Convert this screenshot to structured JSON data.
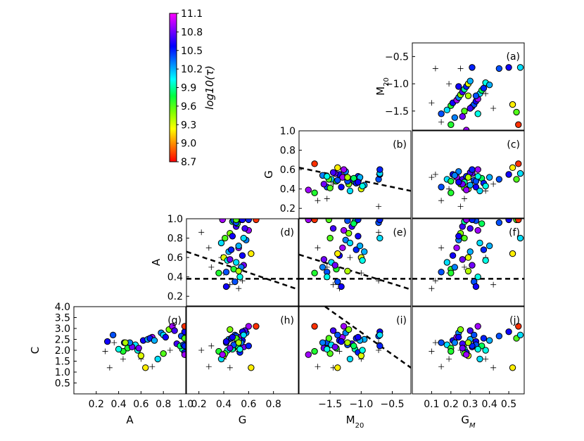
{
  "chart_data": {
    "type": "scatter",
    "layout": "lower-triangular scatter matrix with colorbar top-left",
    "colorbar": {
      "label": "log10(τ)",
      "ticks": [
        "11.1",
        "10.8",
        "10.5",
        "10.2",
        "9.9",
        "9.6",
        "9.3",
        "9.0",
        "8.7"
      ],
      "range": [
        8.7,
        11.1
      ],
      "colors": [
        "#ff0000",
        "#ff8000",
        "#ffff00",
        "#80ff00",
        "#00ff40",
        "#00ffff",
        "#0080ff",
        "#0000ff",
        "#8000ff",
        "#ff00ff"
      ]
    },
    "x_variables": [
      {
        "key": "A",
        "label": "A",
        "range": [
          0,
          1
        ],
        "ticks": [
          "0.2",
          "0.4",
          "0.6",
          "0.8",
          "1.0"
        ]
      },
      {
        "key": "G",
        "label": "G",
        "range": [
          0.1,
          1.0
        ],
        "ticks": [
          "0.2",
          "0.4",
          "0.6",
          "0.8"
        ]
      },
      {
        "key": "M20",
        "label": "M20",
        "range": [
          -2.0,
          -0.2
        ],
        "ticks": [
          "−1.5",
          "−1.0",
          "−0.5"
        ]
      },
      {
        "key": "GM",
        "label": "GM",
        "range": [
          0.0,
          0.58
        ],
        "ticks": [
          "0.1",
          "0.2",
          "0.3",
          "0.4",
          "0.5"
        ]
      }
    ],
    "y_variables": [
      {
        "key": "M20",
        "label": "M20",
        "range": [
          -1.85,
          -0.25
        ],
        "ticks": [
          "−0.5",
          "−1.0",
          "−1.5"
        ]
      },
      {
        "key": "G",
        "label": "G",
        "range": [
          0.1,
          1.0
        ],
        "ticks": [
          "1.0",
          "0.8",
          "0.6",
          "0.4",
          "0.2"
        ]
      },
      {
        "key": "A",
        "label": "A",
        "range": [
          0.1,
          1.0
        ],
        "ticks": [
          "1.0",
          "0.8",
          "0.6",
          "0.4",
          "0.2"
        ]
      },
      {
        "key": "C",
        "label": "C",
        "range": [
          0.0,
          4.0
        ],
        "ticks": [
          "4.0",
          "3.5",
          "3.0",
          "2.5",
          "2.0",
          "1.5",
          "1.0",
          "0.5"
        ]
      }
    ],
    "panels": [
      {
        "id": "a",
        "label": "(a)",
        "x": "GM",
        "y": "M20",
        "row": 0,
        "col": 3,
        "lines": []
      },
      {
        "id": "b",
        "label": "(b)",
        "x": "M20",
        "y": "G",
        "row": 1,
        "col": 2,
        "lines": [
          {
            "x": [
              -2.0,
              -0.2
            ],
            "y": [
              0.62,
              0.38
            ]
          }
        ]
      },
      {
        "id": "c",
        "label": "(c)",
        "x": "GM",
        "y": "G",
        "row": 1,
        "col": 3,
        "lines": []
      },
      {
        "id": "d",
        "label": "(d)",
        "x": "G",
        "y": "A",
        "row": 2,
        "col": 1,
        "lines": [
          {
            "x": [
              0.1,
              1.0
            ],
            "y": [
              0.38,
              0.38
            ]
          },
          {
            "x": [
              0.1,
              1.0
            ],
            "y": [
              0.66,
              0.27
            ]
          }
        ]
      },
      {
        "id": "e",
        "label": "(e)",
        "x": "M20",
        "y": "A",
        "row": 2,
        "col": 2,
        "lines": [
          {
            "x": [
              -2.0,
              -0.2
            ],
            "y": [
              0.38,
              0.38
            ]
          },
          {
            "x": [
              -2.0,
              -0.2
            ],
            "y": [
              0.63,
              0.27
            ]
          }
        ]
      },
      {
        "id": "f",
        "label": "(f)",
        "x": "GM",
        "y": "A",
        "row": 2,
        "col": 3,
        "lines": [
          {
            "x": [
              0.0,
              0.58
            ],
            "y": [
              0.38,
              0.38
            ]
          }
        ]
      },
      {
        "id": "g",
        "label": "(g)",
        "x": "A",
        "y": "C",
        "row": 3,
        "col": 0,
        "lines": []
      },
      {
        "id": "h",
        "label": "(h)",
        "x": "G",
        "y": "C",
        "row": 3,
        "col": 1,
        "lines": []
      },
      {
        "id": "i",
        "label": "(i)",
        "x": "M20",
        "y": "C",
        "row": 3,
        "col": 2,
        "lines": [
          {
            "x": [
              -1.58,
              -0.2
            ],
            "y": [
              4.0,
              1.2
            ]
          }
        ]
      },
      {
        "id": "j",
        "label": "(j)",
        "x": "GM",
        "y": "C",
        "row": 3,
        "col": 3,
        "lines": []
      }
    ],
    "galaxies": [
      {
        "GM": 0.15,
        "M20": -1.55,
        "G": 0.42,
        "A": 0.45,
        "C": 2.35,
        "t": 10.4
      },
      {
        "GM": 0.18,
        "M20": -1.48,
        "G": 0.5,
        "A": 0.55,
        "C": 2.25,
        "t": 10.1
      },
      {
        "GM": 0.2,
        "M20": -1.4,
        "G": 0.48,
        "A": 0.48,
        "C": 2.1,
        "t": 9.7
      },
      {
        "GM": 0.21,
        "M20": -1.35,
        "G": 0.55,
        "A": 0.62,
        "C": 2.45,
        "t": 10.6
      },
      {
        "GM": 0.23,
        "M20": -1.3,
        "G": 0.52,
        "A": 0.7,
        "C": 2.6,
        "t": 10.9
      },
      {
        "GM": 0.24,
        "M20": -1.25,
        "G": 0.58,
        "A": 0.78,
        "C": 2.8,
        "t": 10.3
      },
      {
        "GM": 0.25,
        "M20": -1.2,
        "G": 0.45,
        "A": 0.85,
        "C": 2.95,
        "t": 9.5
      },
      {
        "GM": 0.26,
        "M20": -1.15,
        "G": 0.5,
        "A": 0.92,
        "C": 2.3,
        "t": 10.7
      },
      {
        "GM": 0.27,
        "M20": -1.1,
        "G": 0.47,
        "A": 0.97,
        "C": 2.05,
        "t": 9.9
      },
      {
        "GM": 0.28,
        "M20": -1.05,
        "G": 0.53,
        "A": 0.99,
        "C": 1.9,
        "t": 10.5
      },
      {
        "GM": 0.29,
        "M20": -1.0,
        "G": 0.4,
        "A": 0.6,
        "C": 1.75,
        "t": 9.3
      },
      {
        "GM": 0.3,
        "M20": -0.95,
        "G": 0.44,
        "A": 0.66,
        "C": 2.5,
        "t": 10.2
      },
      {
        "GM": 0.31,
        "M20": -1.42,
        "G": 0.56,
        "A": 0.52,
        "C": 2.15,
        "t": 10.8
      },
      {
        "GM": 0.32,
        "M20": -1.38,
        "G": 0.49,
        "A": 0.35,
        "C": 2.7,
        "t": 10.4
      },
      {
        "GM": 0.33,
        "M20": -1.32,
        "G": 0.42,
        "A": 0.3,
        "C": 2.4,
        "t": 10.6
      },
      {
        "GM": 0.34,
        "M20": -1.28,
        "G": 0.6,
        "A": 0.88,
        "C": 3.1,
        "t": 10.9
      },
      {
        "GM": 0.35,
        "M20": -1.18,
        "G": 0.38,
        "A": 0.75,
        "C": 1.6,
        "t": 10.1
      },
      {
        "GM": 0.36,
        "M20": -1.12,
        "G": 0.51,
        "A": 0.95,
        "C": 2.2,
        "t": 9.8
      },
      {
        "GM": 0.37,
        "M20": -1.08,
        "G": 0.46,
        "A": 0.68,
        "C": 2.55,
        "t": 10.5
      },
      {
        "GM": 0.38,
        "M20": -0.98,
        "G": 0.43,
        "A": 0.57,
        "C": 2.0,
        "t": 10.0
      },
      {
        "GM": 0.22,
        "M20": -1.62,
        "G": 0.54,
        "A": 0.5,
        "C": 2.35,
        "t": 10.3
      },
      {
        "GM": 0.27,
        "M20": -1.5,
        "G": 0.41,
        "A": 0.8,
        "C": 1.85,
        "t": 9.6
      },
      {
        "GM": 0.3,
        "M20": -1.45,
        "G": 0.57,
        "A": 0.9,
        "C": 2.9,
        "t": 10.7
      },
      {
        "GM": 0.33,
        "M20": -1.22,
        "G": 0.48,
        "A": 0.98,
        "C": 2.25,
        "t": 10.4
      },
      {
        "GM": 0.4,
        "M20": -1.02,
        "G": 0.52,
        "A": 0.72,
        "C": 2.45,
        "t": 10.2
      },
      {
        "GM": 0.45,
        "M20": -0.72,
        "G": 0.5,
        "A": 0.96,
        "C": 2.65,
        "t": 10.4
      },
      {
        "GM": 0.5,
        "M20": -0.7,
        "G": 0.55,
        "A": 0.99,
        "C": 2.85,
        "t": 10.6
      },
      {
        "GM": 0.52,
        "M20": -1.38,
        "G": 0.62,
        "A": 0.64,
        "C": 1.2,
        "t": 9.2
      },
      {
        "GM": 0.54,
        "M20": -1.52,
        "G": 0.5,
        "A": 0.99,
        "C": 2.55,
        "t": 9.6
      },
      {
        "GM": 0.55,
        "M20": -1.75,
        "G": 0.66,
        "A": 0.99,
        "C": 3.1,
        "t": 8.8
      },
      {
        "GM": 0.56,
        "M20": -0.7,
        "G": 0.56,
        "A": 0.8,
        "C": 2.7,
        "t": 10.1
      },
      {
        "GM": 0.31,
        "M20": -0.7,
        "G": 0.6,
        "A": 0.99,
        "C": 2.2,
        "t": 10.5
      },
      {
        "GM": 0.2,
        "M20": -1.75,
        "G": 0.36,
        "A": 0.44,
        "C": 1.95,
        "t": 9.7
      },
      {
        "GM": 0.26,
        "M20": -1.6,
        "G": 0.45,
        "A": 0.58,
        "C": 2.1,
        "t": 10.8
      },
      {
        "GM": 0.29,
        "M20": -1.22,
        "G": 0.52,
        "A": 0.46,
        "C": 2.35,
        "t": 9.4
      },
      {
        "GM": 0.24,
        "M20": -1.05,
        "G": 0.47,
        "A": 0.82,
        "C": 2.6,
        "t": 10.6
      },
      {
        "GM": 0.34,
        "M20": -1.55,
        "G": 0.53,
        "A": 0.4,
        "C": 2.05,
        "t": 10.0
      },
      {
        "GM": 0.28,
        "M20": -1.85,
        "G": 0.39,
        "A": 0.99,
        "C": 1.8,
        "t": 10.9
      }
    ],
    "comparison": [
      {
        "GM": 0.1,
        "M20": -1.35,
        "G": 0.52,
        "A": 0.28,
        "C": 1.95
      },
      {
        "GM": 0.12,
        "M20": -0.72,
        "G": 0.55,
        "A": 0.36,
        "C": 2.35
      },
      {
        "GM": 0.15,
        "M20": -1.7,
        "G": 0.28,
        "A": 0.7,
        "C": 1.25
      },
      {
        "GM": 0.19,
        "M20": -1.0,
        "G": 0.4,
        "A": 0.44,
        "C": 1.6
      },
      {
        "GM": 0.25,
        "M20": -0.72,
        "G": 0.22,
        "A": 0.86,
        "C": 2.0
      },
      {
        "GM": 0.27,
        "M20": -1.55,
        "G": 0.3,
        "A": 0.5,
        "C": 2.2
      },
      {
        "GM": 0.38,
        "M20": -1.18,
        "G": 0.38,
        "A": 0.6,
        "C": 1.6
      },
      {
        "GM": 0.42,
        "M20": -1.45,
        "G": 0.45,
        "A": 0.32,
        "C": 1.2
      }
    ]
  }
}
